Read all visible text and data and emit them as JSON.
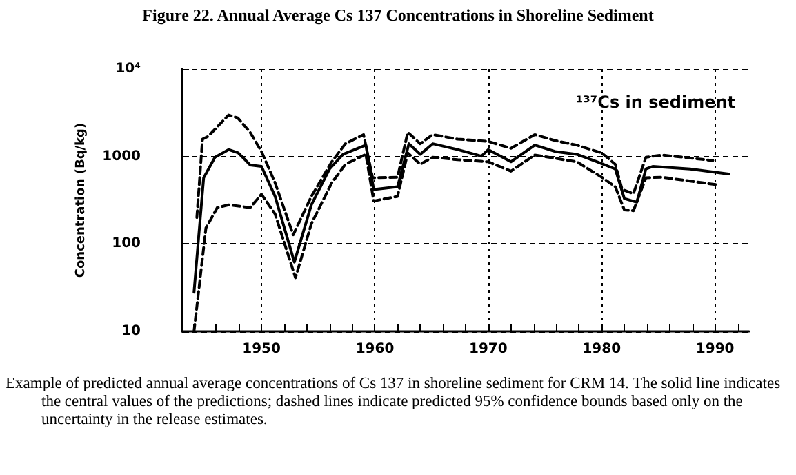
{
  "chart_data": {
    "type": "line",
    "title": "Figure 22. Annual Average Cs 137 Concentrations in Shoreline Sediment",
    "ylabel": "Concentration (Bq/kg)",
    "annotations": [
      "¹³⁷Cs in sediment",
      "Example of predicted annual average concentrations of Cs 137 in shoreline sediment for CRM 14. The solid line indicates the central values of the predictions; dashed lines indicate predicted 95% confidence bounds based only on the uncertainty in the release estimates."
    ],
    "log": "y",
    "grid": true,
    "marker": "none",
    "xlim": [
      1943,
      1993
    ],
    "ylim": [
      10,
      10000
    ],
    "xticks": [
      {
        "value": 1944,
        "label": null
      },
      {
        "value": 1946,
        "label": null
      },
      {
        "value": 1948,
        "label": null
      },
      1950,
      {
        "value": 1952,
        "label": null
      },
      {
        "value": 1954,
        "label": null
      },
      {
        "value": 1956,
        "label": null
      },
      {
        "value": 1958,
        "label": null
      },
      1960,
      {
        "value": 1962,
        "label": null
      },
      {
        "value": 1964,
        "label": null
      },
      {
        "value": 1966,
        "label": null
      },
      {
        "value": 1968,
        "label": null
      },
      1970,
      {
        "value": 1972,
        "label": null
      },
      {
        "value": 1974,
        "label": null
      },
      {
        "value": 1976,
        "label": null
      },
      {
        "value": 1978,
        "label": null
      },
      1980,
      {
        "value": 1982,
        "label": null
      },
      {
        "value": 1984,
        "label": null
      },
      {
        "value": 1986,
        "label": null
      },
      {
        "value": 1988,
        "label": null
      },
      1990,
      {
        "value": 1992,
        "label": null
      }
    ],
    "yticks": [
      10,
      100,
      1000,
      {
        "value": 10000,
        "label": "10⁴"
      }
    ],
    "series": [
      {
        "color": "#000000",
        "line_style": "solid",
        "x": [
          1944.05,
          1944.9,
          1945.9,
          1947.1,
          1947.95,
          1949,
          1950,
          1951.2,
          1952.9,
          1954.4,
          1956,
          1957.2,
          1959.2,
          1959.9,
          1962,
          1963,
          1964,
          1965.1,
          1967.3,
          1969.4,
          1970,
          1972,
          1974.1,
          1975.9,
          1977.8,
          1979.6,
          1981.2,
          1982,
          1983.1,
          1983.9,
          1984.5,
          1987.8,
          1991.2
        ],
        "values": [
          28,
          570,
          980,
          1200,
          1100,
          800,
          770,
          350,
          62,
          280,
          720,
          1060,
          1350,
          420,
          450,
          1400,
          1060,
          1400,
          1200,
          1010,
          1200,
          870,
          1350,
          1140,
          1060,
          870,
          720,
          330,
          300,
          720,
          770,
          720,
          630
        ]
      },
      {
        "color": "#000000",
        "line_style": "dashed",
        "x": [
          1944.3,
          1944.8,
          1945.3,
          1947.1,
          1947.9,
          1949,
          1950,
          1951.2,
          1952.8,
          1954.4,
          1956.2,
          1957.4,
          1959,
          1959.8,
          1962,
          1962.9,
          1964,
          1965.1,
          1967.3,
          1970,
          1972,
          1974.1,
          1975.9,
          1977.8,
          1980,
          1981.2,
          1981.8,
          1982.8,
          1983.9,
          1985.3,
          1989.8
        ],
        "values": [
          200,
          1580,
          1700,
          2980,
          2770,
          1890,
          1140,
          500,
          127,
          350,
          870,
          1400,
          1780,
          570,
          580,
          1890,
          1400,
          1780,
          1580,
          1490,
          1240,
          1780,
          1520,
          1350,
          1100,
          815,
          420,
          375,
          980,
          1040,
          900
        ]
      },
      {
        "color": "#000000",
        "line_style": "dashed",
        "x": [
          1944.05,
          1944.5,
          1945.1,
          1946.1,
          1947.1,
          1949,
          1950,
          1951.2,
          1953,
          1954.4,
          1956.2,
          1957.4,
          1959.2,
          1959.9,
          1962,
          1962.9,
          1964,
          1965.1,
          1967.3,
          1970,
          1972,
          1974.1,
          1977.8,
          1980,
          1981.2,
          1982,
          1982.8,
          1983.9,
          1985.3,
          1990.2
        ],
        "values": [
          10,
          32,
          152,
          260,
          280,
          260,
          370,
          220,
          41,
          170,
          500,
          815,
          1060,
          310,
          350,
          1100,
          815,
          980,
          920,
          870,
          680,
          1040,
          870,
          580,
          450,
          245,
          240,
          570,
          580,
          475
        ]
      }
    ]
  }
}
